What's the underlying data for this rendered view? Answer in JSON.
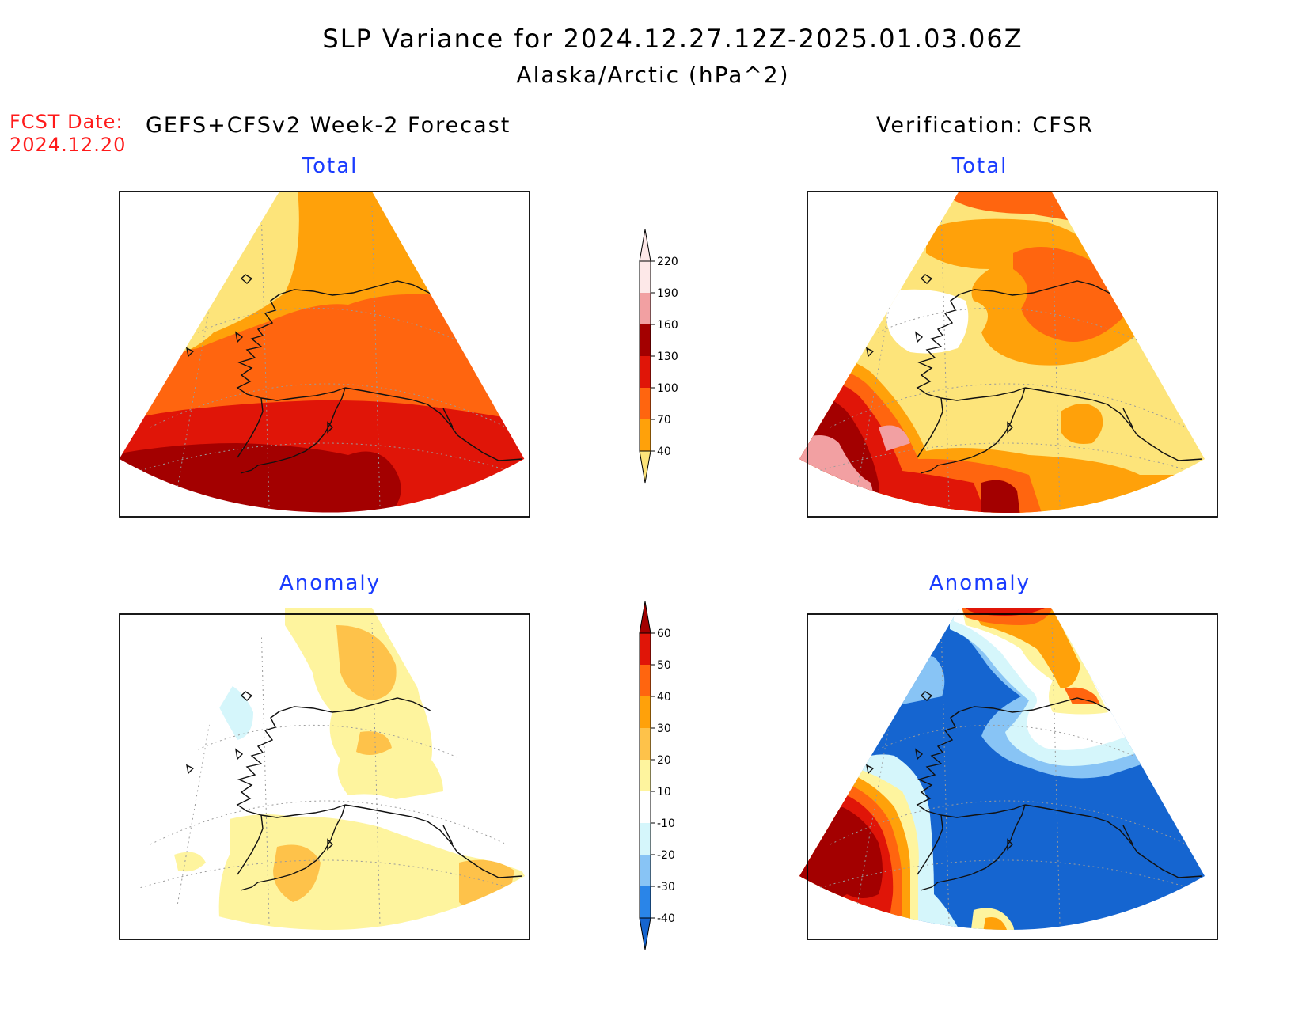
{
  "title": "SLP Variance for 2024.12.27.12Z-2025.01.03.06Z",
  "subtitle": "Alaska/Arctic (hPa^2)",
  "fcst_date": {
    "label": "FCST Date:",
    "value": "2024.12.20"
  },
  "left_header": "GEFS+CFSv2 Week-2 Forecast",
  "right_header": "Verification: CFSR",
  "panels": {
    "forecast_total": "Total",
    "verification_total": "Total",
    "forecast_anomaly": "Anomaly",
    "verification_anomaly": "Anomaly"
  },
  "total_colorbar": {
    "levels": [
      "40",
      "70",
      "100",
      "130",
      "160",
      "190",
      "220"
    ],
    "colors": [
      "#fde47a",
      "#ffa10a",
      "#ff650f",
      "#e01508",
      "#a30000",
      "#f2a0a2",
      "#fde8e8"
    ]
  },
  "anomaly_colorbar": {
    "levels": [
      "-40",
      "-30",
      "-20",
      "-10",
      "10",
      "20",
      "30",
      "40",
      "50",
      "60"
    ],
    "colors": [
      "#1565d0",
      "#2a85e8",
      "#88c4f5",
      "#d5f6fb",
      "#ffffff",
      "#fef49e",
      "#fec24a",
      "#ffa10a",
      "#ff650f",
      "#e01508",
      "#a30000"
    ]
  }
}
